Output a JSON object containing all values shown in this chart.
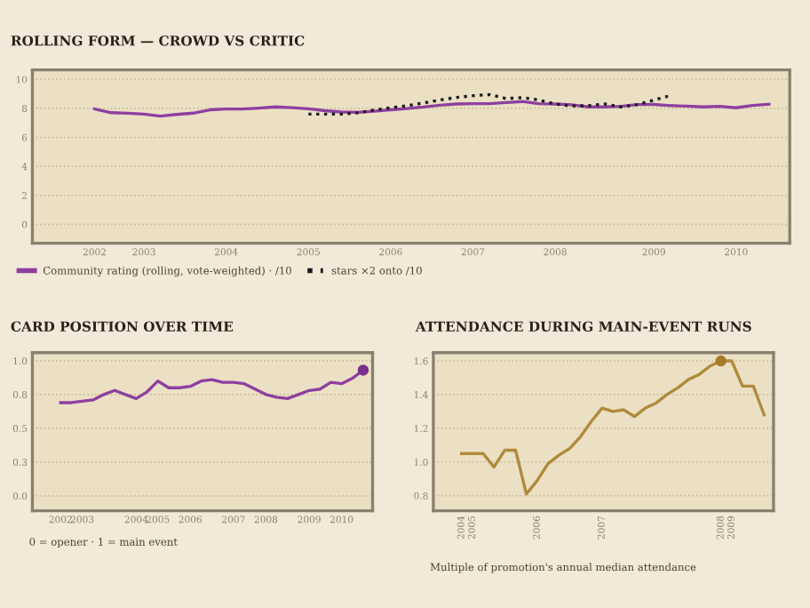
{
  "chart_data": [
    {
      "type": "line",
      "title": "ROLLING FORM — CROWD VS CRITIC",
      "ylim": [
        -1.3,
        10.65
      ],
      "categories": [
        "2002",
        null,
        null,
        "2003",
        null,
        null,
        null,
        null,
        "2004",
        null,
        null,
        null,
        null,
        "2005",
        null,
        null,
        null,
        null,
        "2006",
        null,
        null,
        null,
        null,
        "2007",
        null,
        null,
        null,
        null,
        "2008",
        null,
        null,
        null,
        null,
        null,
        "2009",
        null,
        null,
        null,
        null,
        "2010",
        null,
        null
      ],
      "yticks": [
        0,
        2,
        4,
        6,
        8,
        10
      ],
      "grid": "y",
      "legend": "bottom",
      "series": [
        {
          "name": "Community rating (rolling, vote-weighted) · /10",
          "color": "#8e3fa0",
          "line_style": "solid",
          "values": [
            7.96,
            7.7,
            7.66,
            7.6,
            7.46,
            7.58,
            7.67,
            7.9,
            7.96,
            7.96,
            8.02,
            8.1,
            8.05,
            7.97,
            7.84,
            7.75,
            7.72,
            7.8,
            7.9,
            7.99,
            8.09,
            8.22,
            8.3,
            8.32,
            8.32,
            8.4,
            8.47,
            8.32,
            8.3,
            8.25,
            8.1,
            8.1,
            8.14,
            8.26,
            8.27,
            8.19,
            8.15,
            8.1,
            8.14,
            8.04,
            8.2,
            8.28
          ]
        },
        {
          "name": "stars ×2 onto /10",
          "color": "#1a1a1a",
          "line_style": "dotted",
          "values": [
            null,
            null,
            null,
            null,
            null,
            null,
            null,
            null,
            null,
            null,
            null,
            null,
            null,
            7.6,
            7.6,
            7.6,
            7.69,
            7.88,
            8.04,
            8.18,
            8.37,
            8.58,
            8.75,
            8.87,
            8.95,
            8.68,
            8.74,
            8.58,
            8.3,
            8.17,
            8.18,
            8.3,
            8.1,
            8.26,
            8.57,
            8.88,
            null,
            null,
            null,
            null,
            null,
            null
          ]
        }
      ]
    },
    {
      "type": "line",
      "title": "CARD POSITION OVER TIME",
      "ylim": [
        -0.11,
        1.06
      ],
      "categories": [
        "2002",
        null,
        "2003",
        null,
        null,
        null,
        null,
        "2004",
        null,
        "2005",
        null,
        null,
        "2006",
        null,
        null,
        null,
        "2007",
        null,
        null,
        "2008",
        null,
        null,
        null,
        "2009",
        null,
        null,
        "2010",
        null,
        null
      ],
      "yticks": [
        {
          "value": 0,
          "label": "0.0"
        },
        {
          "value": 0.25,
          "label": "0.3"
        },
        {
          "value": 0.5,
          "label": "0.5"
        },
        {
          "value": 0.75,
          "label": "0.8"
        },
        {
          "value": 1.0,
          "label": "1.0"
        }
      ],
      "grid": "y",
      "annotations": [
        "0 = opener · 1 = main event"
      ],
      "series": [
        {
          "color": "#8e3fa0",
          "values": [
            0.69,
            0.69,
            0.7,
            0.71,
            0.75,
            0.78,
            0.75,
            0.72,
            0.77,
            0.85,
            0.8,
            0.8,
            0.81,
            0.85,
            0.86,
            0.84,
            0.84,
            0.83,
            0.79,
            0.75,
            0.73,
            0.72,
            0.75,
            0.78,
            0.79,
            0.84,
            0.83,
            0.87,
            0.93
          ]
        },
        {
          "type": "scatter",
          "color": "#7a2f8c",
          "marker": "circle",
          "values": [
            null,
            null,
            null,
            null,
            null,
            null,
            null,
            null,
            null,
            null,
            null,
            null,
            null,
            null,
            null,
            null,
            null,
            null,
            null,
            null,
            null,
            null,
            null,
            null,
            null,
            null,
            null,
            null,
            0.93
          ]
        }
      ]
    },
    {
      "type": "line",
      "title": "ATTENDANCE DURING MAIN-EVENT RUNS",
      "ylim": [
        0.711,
        1.649
      ],
      "categories": [
        "2004",
        "2005",
        null,
        null,
        null,
        null,
        null,
        "2006",
        null,
        null,
        null,
        null,
        null,
        "2007",
        null,
        null,
        null,
        null,
        null,
        null,
        null,
        null,
        null,
        null,
        "2008",
        "2009",
        null,
        null,
        null
      ],
      "yticks": [
        {
          "value": 0.8,
          "label": "0.8"
        },
        {
          "value": 1.0,
          "label": "1.0"
        },
        {
          "value": 1.2,
          "label": "1.2"
        },
        {
          "value": 1.4,
          "label": "1.4"
        },
        {
          "value": 1.6,
          "label": "1.6"
        }
      ],
      "grid": "y",
      "annotations": [
        "Multiple of promotion's annual median attendance"
      ],
      "series": [
        {
          "color": "#b08a3a",
          "values": [
            1.05,
            1.05,
            1.05,
            0.97,
            1.07,
            1.07,
            0.81,
            0.89,
            0.99,
            1.04,
            1.08,
            1.15,
            1.24,
            1.32,
            1.3,
            1.31,
            1.27,
            1.32,
            1.35,
            1.4,
            1.44,
            1.49,
            1.52,
            1.57,
            1.6,
            1.6,
            1.45,
            1.45,
            1.28
          ]
        },
        {
          "type": "scatter",
          "color": "#a87a25",
          "marker": "circle",
          "values": [
            null,
            null,
            null,
            null,
            null,
            null,
            null,
            null,
            null,
            null,
            null,
            null,
            null,
            null,
            null,
            null,
            null,
            null,
            null,
            null,
            null,
            null,
            null,
            null,
            1.6,
            null,
            null,
            null,
            null
          ]
        }
      ]
    }
  ]
}
